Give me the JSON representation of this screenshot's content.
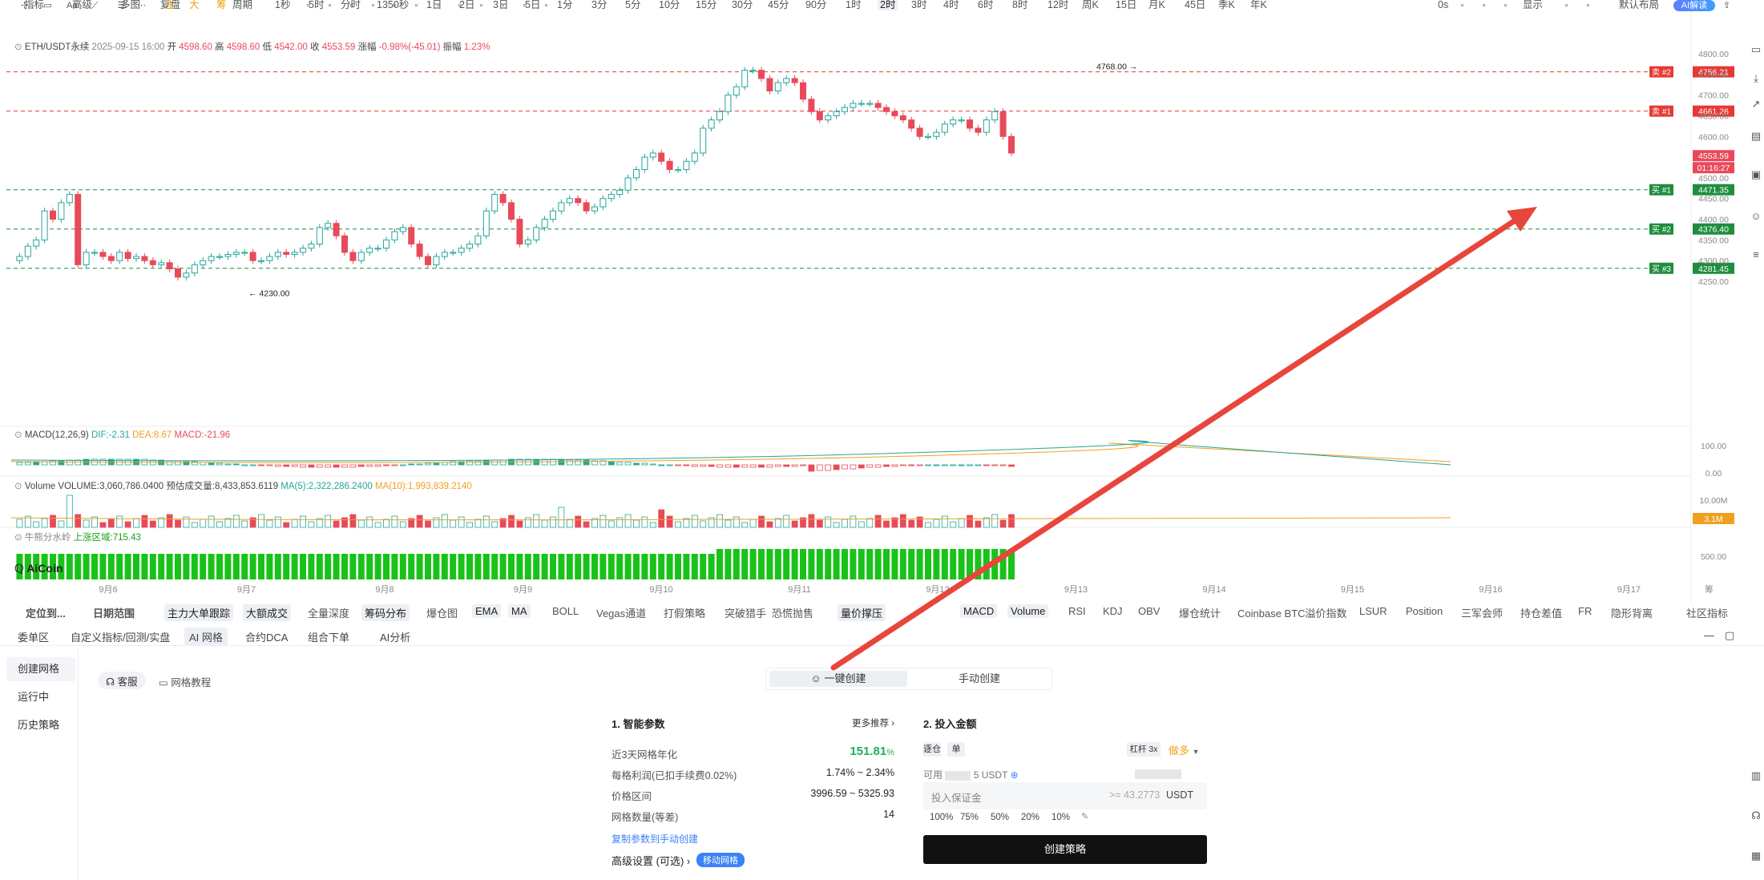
{
  "toolbar": {
    "items": [
      "指标",
      "高级",
      "多图",
      "复盘",
      "",
      "周期",
      "1秒",
      "5时",
      "分时",
      "1350秒",
      "1日",
      "2日",
      "3日",
      "5日",
      "1分",
      "3分",
      "5分",
      "10分",
      "15分",
      "30分",
      "45分",
      "90分",
      "1时",
      "2时",
      "3时",
      "4时",
      "6时",
      "8时",
      "12时",
      "周K",
      "15日",
      "月K",
      "45日",
      "季K",
      "年K"
    ],
    "active_period": "2时",
    "right_items": [
      "0s",
      "显示",
      "默认布局"
    ],
    "ai_badge": "AI解读",
    "main_letters": [
      "主",
      "大",
      "筹"
    ]
  },
  "chart": {
    "symbol_line": {
      "symbol": "ETH/USDT永续",
      "time": "2025-09-15 16:00",
      "open_label": "开",
      "open": "4598.60",
      "high_label": "高",
      "high": "4598.60",
      "low_label": "低",
      "low": "4542.00",
      "close_label": "收",
      "close": "4553.59",
      "change_label": "涨幅",
      "change": "-0.98%(-45.01)",
      "amp_label": "振幅",
      "amp": "1.23%"
    },
    "high_marker": "4768.00",
    "low_marker": "4230.00",
    "price_axis": [
      "4800.00",
      "4750.00",
      "4700.00",
      "4650.00",
      "4600.00",
      "4550.00",
      "4500.00",
      "4450.00",
      "4400.00",
      "4350.00",
      "4300.00",
      "4250.00"
    ],
    "grid_lines": [
      {
        "label": "卖 #2",
        "price": "4756.21",
        "color": "#e53935"
      },
      {
        "label": "卖 #1",
        "price": "4661.26",
        "color": "#e53935"
      },
      {
        "label": "买 #1",
        "price": "4471.35",
        "color": "#1e8e3e"
      },
      {
        "label": "买 #2",
        "price": "4376.40",
        "color": "#1e8e3e"
      },
      {
        "label": "买 #3",
        "price": "4281.45",
        "color": "#1e8e3e"
      }
    ],
    "current_price": "4553.59",
    "countdown": "01:16:27",
    "macd": {
      "label": "MACD(12,26,9)",
      "dif": "DIF:-2.31",
      "dea": "DEA:8.67",
      "macd": "MACD:-21.96",
      "axis": [
        "100.00",
        "0.00"
      ]
    },
    "volume": {
      "label": "Volume",
      "vol": "VOLUME:3,060,786.0400",
      "est": "预估成交量:8,433,853.6119",
      "ma5": "MA(5):2,322,286.2400",
      "ma10": "MA(10):1,993,839.2140",
      "axis": [
        "10.00M"
      ],
      "badge": "3.1M"
    },
    "bullbear": {
      "label": "牛熊分水岭",
      "value": "上涨区域:715.43",
      "axis": [
        "500.00"
      ],
      "logo": "AiCoin"
    },
    "date_axis": [
      "9月6",
      "9月7",
      "9月8",
      "9月9",
      "9月10",
      "9月11",
      "9月12",
      "9月13",
      "9月14",
      "9月15",
      "9月16",
      "9月17"
    ],
    "date_axis_right": "筹"
  },
  "chart_tabs": {
    "left": [
      "定位到...",
      "日期范围"
    ],
    "indicators_main": [
      "主力大单跟踪",
      "大额成交",
      "全量深度",
      "筹码分布",
      "爆仓图",
      "EMA",
      "MA",
      "BOLL",
      "Vegas通道",
      "打假策略",
      "突破猎手",
      "恐慌抛售",
      "量价撑压"
    ],
    "indicators_sub": [
      "MACD",
      "Volume",
      "RSI",
      "KDJ",
      "OBV",
      "爆仓统计",
      "Coinbase BTC溢价指数",
      "LSUR",
      "Position",
      "三军会师",
      "持仓差值",
      "FR",
      "隐形背离"
    ],
    "community": "社区指标"
  },
  "panel_tabs": [
    "委单区",
    "自定义指标/回测/实盘",
    "AI 网格",
    "合约DCA",
    "组合下单",
    "AI分析"
  ],
  "panel_active": "AI 网格",
  "sidebar": {
    "items": [
      "创建网格",
      "运行中",
      "历史策略"
    ]
  },
  "support": {
    "service": "客服",
    "tutorial": "网格教程"
  },
  "mode_tabs": {
    "one_click": "一键创建",
    "manual": "手动创建"
  },
  "params": {
    "title": "1. 智能参数",
    "more": "更多推荐",
    "rows": [
      {
        "label": "近3天网格年化",
        "value": "151.81",
        "unit": "%"
      },
      {
        "label": "每格利润(已扣手续费0.02%)",
        "value": "1.74% ~ 2.34%"
      },
      {
        "label": "价格区间",
        "value": "3996.59 ~ 5325.93"
      },
      {
        "label": "网格数量(等差)",
        "value": "14"
      }
    ],
    "copy_link": "复制参数到手动创建",
    "advanced": "高级设置 (可选)",
    "moving_grid": "移动网格"
  },
  "invest": {
    "title": "2. 投入金额",
    "margin_modes": [
      "逐仓",
      "单"
    ],
    "leverage": "杠杆 3x",
    "direction": "做多",
    "available_label": "可用",
    "available_value": "5",
    "available_unit": "USDT",
    "input_placeholder": "投入保证金",
    "input_min": ">= 43.2773",
    "input_unit": "USDT",
    "percents": [
      "100%",
      "75%",
      "50%",
      "20%",
      "10%"
    ],
    "create_button": "创建策略"
  },
  "colors": {
    "up": "#26a69a",
    "down": "#e84a5a",
    "arrow": "#e8453c",
    "accent": "#3b82f6"
  }
}
